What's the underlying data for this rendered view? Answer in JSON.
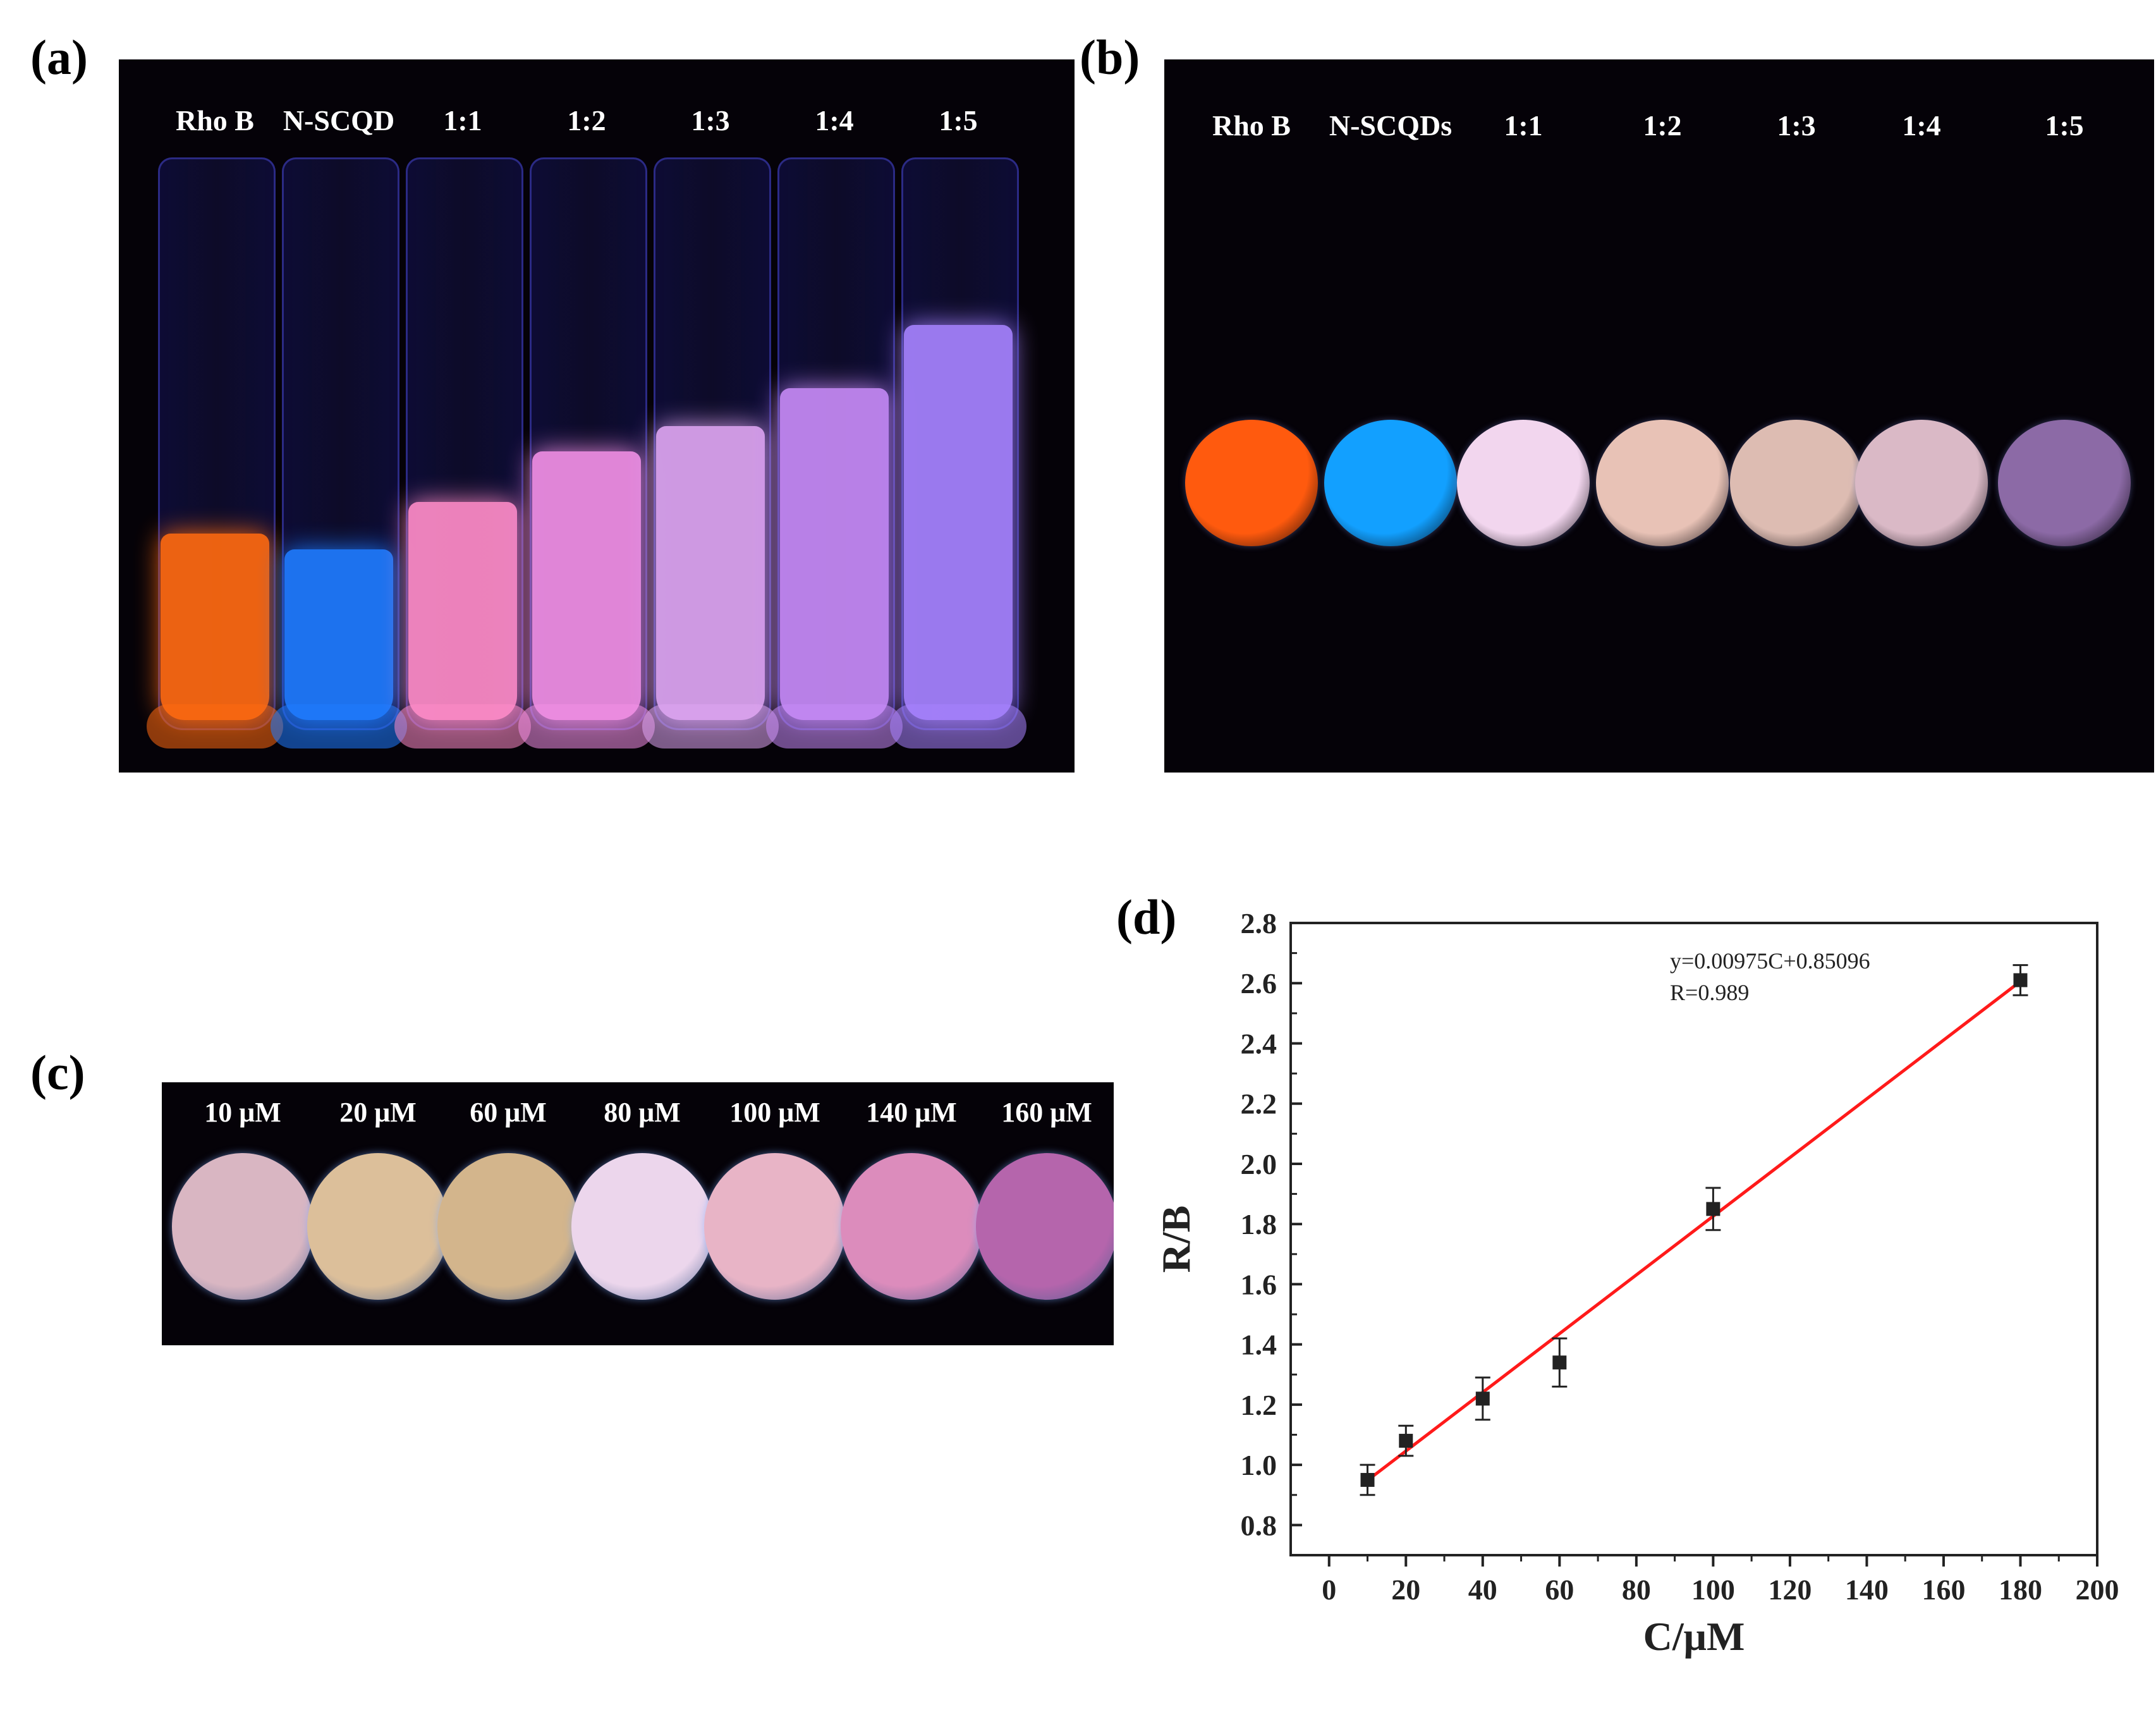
{
  "panels": {
    "a": {
      "label": "(a)",
      "samples": [
        {
          "name": "Rho B",
          "color": "#ff6a10"
        },
        {
          "name": "N-SCQD",
          "color": "#1f7bff"
        },
        {
          "name": "1:1",
          "color": "#ff8cc8"
        },
        {
          "name": "1:2",
          "color": "#f290e6"
        },
        {
          "name": "1:3",
          "color": "#dfa6f2"
        },
        {
          "name": "1:4",
          "color": "#c78af7"
        },
        {
          "name": "1:5",
          "color": "#a783ff"
        }
      ]
    },
    "b": {
      "label": "(b)",
      "samples": [
        {
          "name": "Rho B",
          "color": "#ff5a0e"
        },
        {
          "name": "N-SCQDs",
          "color": "#12a0ff"
        },
        {
          "name": "1:1",
          "color": "#f2d6ee"
        },
        {
          "name": "1:2",
          "color": "#e8c2b6"
        },
        {
          "name": "1:3",
          "color": "#ddbcb2"
        },
        {
          "name": "1:4",
          "color": "#dab9c6"
        },
        {
          "name": "1:5",
          "color": "#8c6aa6"
        }
      ]
    },
    "c": {
      "label": "(c)",
      "samples": [
        {
          "name": "10 μM",
          "color": "#d9b6c2"
        },
        {
          "name": "20 μM",
          "color": "#dcbf9a"
        },
        {
          "name": "60 μM",
          "color": "#d3b58c"
        },
        {
          "name": "80 μM",
          "color": "#ecd6ec"
        },
        {
          "name": "100 μM",
          "color": "#e8b4c6"
        },
        {
          "name": "140 μM",
          "color": "#dc8cbc"
        },
        {
          "name": "160 μM",
          "color": "#b565ac"
        }
      ]
    },
    "d": {
      "label": "(d)"
    }
  },
  "chart_data": {
    "type": "scatter",
    "xlabel": "C/μM",
    "ylabel": "R/B",
    "xlim": [
      -10,
      200
    ],
    "ylim": [
      0.7,
      2.8
    ],
    "xticks": [
      0,
      20,
      40,
      60,
      80,
      100,
      120,
      140,
      160,
      180,
      200
    ],
    "yticks": [
      0.8,
      1.0,
      1.2,
      1.4,
      1.6,
      1.8,
      2.0,
      2.2,
      2.4,
      2.6,
      2.8
    ],
    "points": [
      {
        "x": 10,
        "y": 0.95,
        "err": 0.05
      },
      {
        "x": 20,
        "y": 1.08,
        "err": 0.05
      },
      {
        "x": 40,
        "y": 1.22,
        "err": 0.07
      },
      {
        "x": 60,
        "y": 1.34,
        "err": 0.08
      },
      {
        "x": 100,
        "y": 1.85,
        "err": 0.07
      },
      {
        "x": 180,
        "y": 2.61,
        "err": 0.05
      }
    ],
    "fit": {
      "slope": 0.00975,
      "intercept": 0.85096,
      "x_range": [
        10,
        180
      ],
      "color": "#ff1a1a",
      "equation": "y=0.00975C+0.85096",
      "r_text": "R=0.989"
    }
  }
}
